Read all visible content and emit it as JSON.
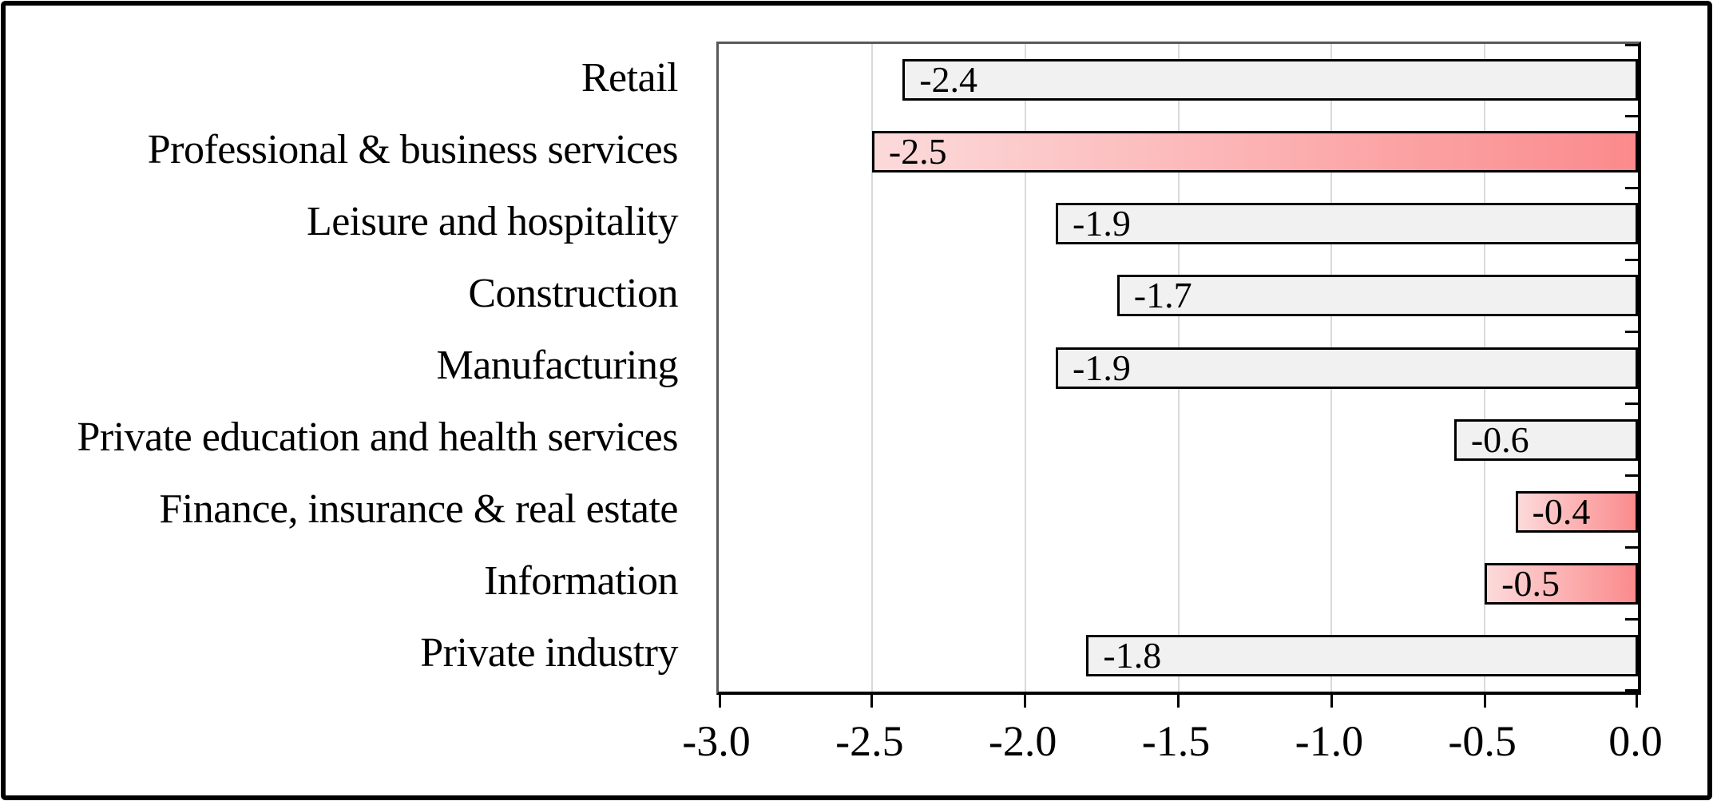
{
  "figure": {
    "background": "#ffffff",
    "frame_border_color": "#000000"
  },
  "colors": {
    "bar_default_fill": "#f1f1f1",
    "bar_highlight_gradient_start": "#fcdada",
    "bar_highlight_gradient_end": "#fb8a8c",
    "bar_border": "#000000",
    "plot_border": "#595959",
    "axis_line": "#000000",
    "gridline": "#d9d9d9",
    "text": "#000000"
  },
  "chart_data": {
    "type": "bar",
    "orientation": "horizontal",
    "title": "",
    "xlabel": "",
    "ylabel": "",
    "grid": true,
    "legend": false,
    "xlim": [
      -3.0,
      0.0
    ],
    "x_ticks": [
      -3.0,
      -2.5,
      -2.0,
      -1.5,
      -1.0,
      -0.5,
      0.0
    ],
    "x_tick_labels": [
      "-3.0",
      "-2.5",
      "-2.0",
      "-1.5",
      "-1.0",
      "-0.5",
      "0.0"
    ],
    "categories": [
      "Retail",
      "Professional & business services",
      "Leisure and hospitality",
      "Construction",
      "Manufacturing",
      "Private education and health services",
      "Finance, insurance & real estate",
      "Information",
      "Private industry"
    ],
    "values": [
      -2.4,
      -2.5,
      -1.9,
      -1.7,
      -1.9,
      -0.6,
      -0.4,
      -0.5,
      -1.8
    ],
    "data_labels": [
      "-2.4",
      "-2.5",
      "-1.9",
      "-1.7",
      "-1.9",
      "-0.6",
      "-0.4",
      "-0.5",
      "-1.8"
    ],
    "highlighted": [
      false,
      true,
      false,
      false,
      false,
      false,
      true,
      true,
      false
    ]
  }
}
